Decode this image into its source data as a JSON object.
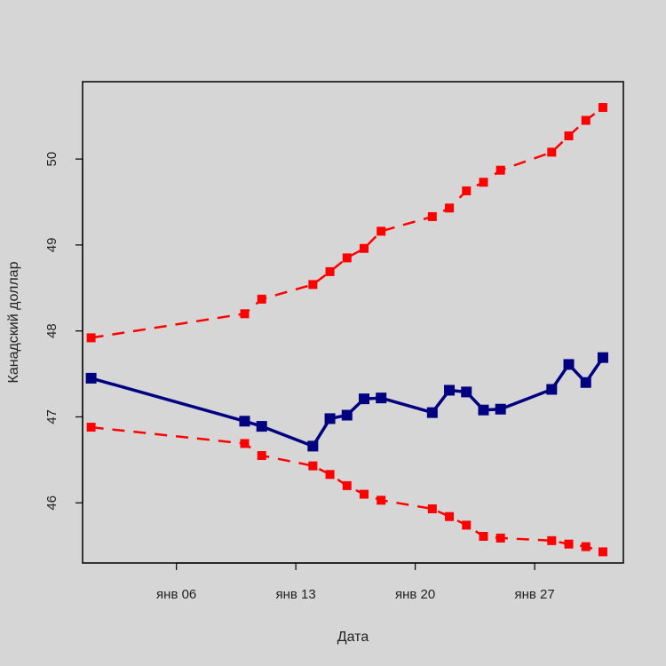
{
  "chart_data": {
    "type": "line",
    "xlabel": "Дата",
    "ylabel": "Канадский доллар",
    "x_ticks": [
      {
        "day": 6,
        "label": "янв 06"
      },
      {
        "day": 13,
        "label": "янв 13"
      },
      {
        "day": 20,
        "label": "янв 20"
      },
      {
        "day": 27,
        "label": "янв 27"
      }
    ],
    "y_ticks": [
      46,
      47,
      48,
      49,
      50
    ],
    "xlim": [
      0.5,
      32.2
    ],
    "ylim": [
      45.3,
      50.9
    ],
    "grid": false,
    "series": [
      {
        "role": "main",
        "color": "#000080",
        "line_style": "solid",
        "x": [
          1,
          10,
          11,
          14,
          15,
          16,
          17,
          18,
          21,
          22,
          23,
          24,
          25,
          28,
          29,
          30,
          31
        ],
        "y": [
          47.45,
          46.95,
          46.89,
          46.66,
          46.98,
          47.02,
          47.21,
          47.22,
          47.05,
          47.31,
          47.29,
          47.08,
          47.09,
          47.32,
          47.61,
          47.4,
          47.69
        ]
      },
      {
        "role": "upper",
        "color": "#ff0000",
        "line_style": "dashed",
        "x": [
          1,
          10,
          11,
          14,
          15,
          16,
          17,
          18,
          21,
          22,
          23,
          24,
          25,
          28,
          29,
          30,
          31
        ],
        "y": [
          47.92,
          48.2,
          48.37,
          48.54,
          48.69,
          48.85,
          48.96,
          49.16,
          49.33,
          49.43,
          49.63,
          49.73,
          49.87,
          50.08,
          50.27,
          50.45,
          50.6
        ]
      },
      {
        "role": "lower",
        "color": "#ff0000",
        "line_style": "dashed",
        "x": [
          1,
          10,
          11,
          14,
          15,
          16,
          17,
          18,
          21,
          22,
          23,
          24,
          25,
          28,
          29,
          30,
          31
        ],
        "y": [
          46.88,
          46.69,
          46.55,
          46.43,
          46.33,
          46.2,
          46.1,
          46.03,
          45.93,
          45.84,
          45.74,
          45.61,
          45.59,
          45.56,
          45.52,
          45.49,
          45.43
        ]
      }
    ]
  }
}
